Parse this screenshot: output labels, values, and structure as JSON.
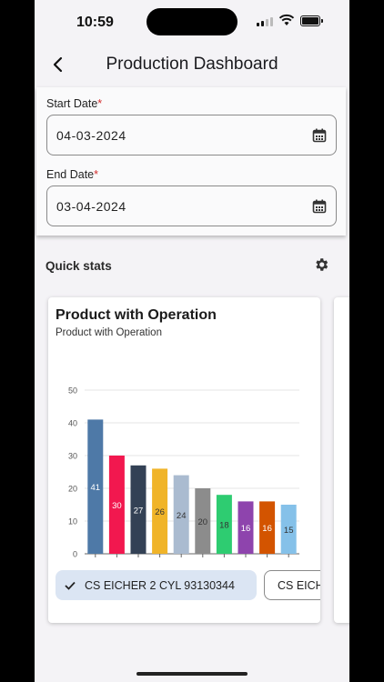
{
  "status_bar": {
    "time": "10:59"
  },
  "header": {
    "title": "Production Dashboard"
  },
  "form": {
    "start": {
      "label": "Start Date",
      "required_mark": "*",
      "value": "04-03-2024"
    },
    "end": {
      "label": "End Date",
      "required_mark": "*",
      "value": "03-04-2024"
    }
  },
  "quick_stats": {
    "label": "Quick stats"
  },
  "chart_card": {
    "title": "Product with Operation",
    "subtitle": "Product with Operation"
  },
  "chart_data": {
    "type": "bar",
    "title": "Product with Operation",
    "subtitle": "Product with Operation",
    "xlabel": "",
    "ylabel": "",
    "ylim": [
      0,
      50
    ],
    "yticks": [
      0,
      10,
      20,
      30,
      40,
      50
    ],
    "grid": true,
    "values": [
      41,
      30,
      27,
      26,
      24,
      20,
      18,
      16,
      16,
      15
    ],
    "colors": [
      "#4e79a7",
      "#f2184f",
      "#334155",
      "#f0b429",
      "#aabbd0",
      "#8c8c8c",
      "#2ecc71",
      "#8e44ad",
      "#d35400",
      "#85c1e9"
    ],
    "label_colors": [
      "#ffffff",
      "#ffffff",
      "#ffffff",
      "#333333",
      "#333333",
      "#333333",
      "#333333",
      "#ffffff",
      "#ffffff",
      "#333333"
    ]
  },
  "chips": {
    "selected": "CS EICHER 2 CYL 93130344",
    "next": "CS EICHER"
  },
  "colors": {
    "accent_chip": "#dbe5f3",
    "required": "#d32f2f"
  }
}
